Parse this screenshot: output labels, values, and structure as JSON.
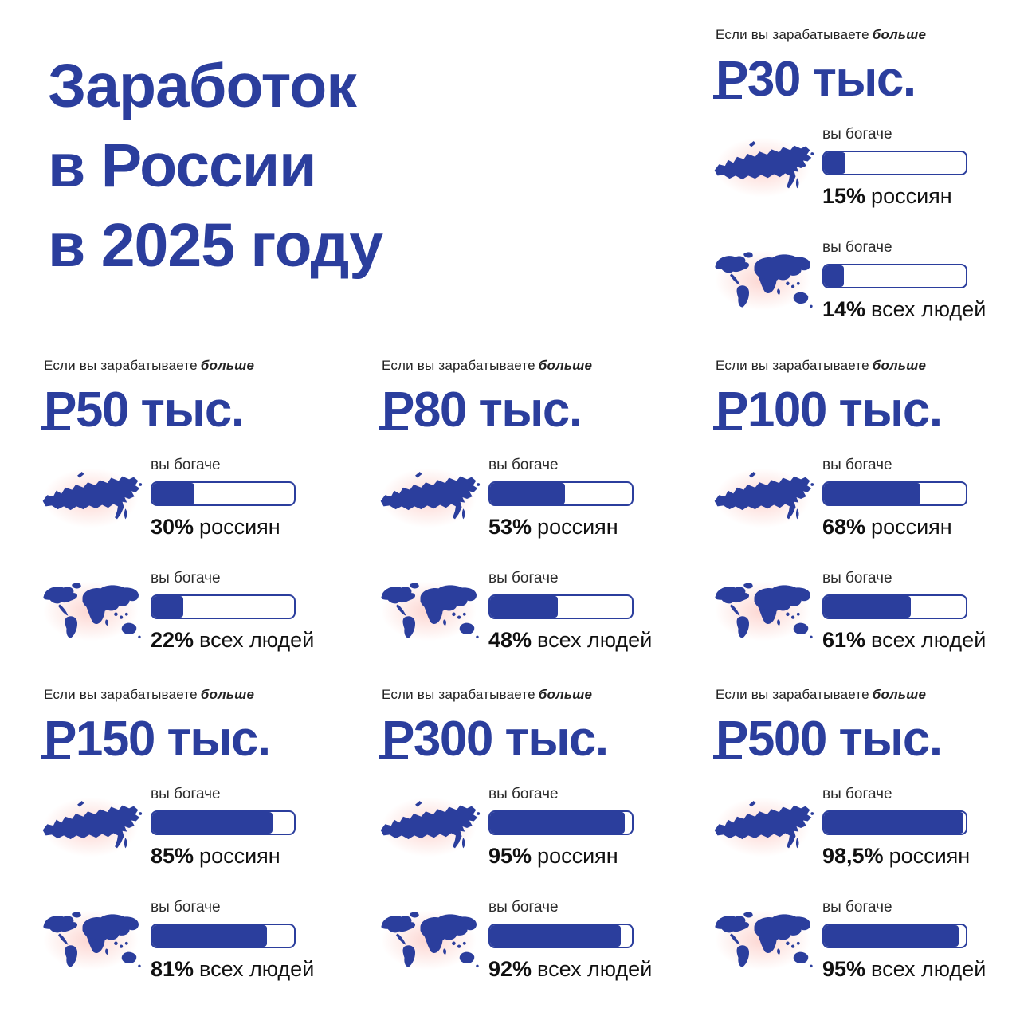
{
  "page": {
    "background": "#ffffff",
    "accent_blue": "#2b3e9d",
    "text_dark": "#1d1d1f",
    "map_glow_pink": "#faa89e"
  },
  "icons": {
    "ruble_base": "Р",
    "russia_map": "russia-map",
    "world_map": "world-map"
  },
  "main_title": {
    "lines": [
      "Заработок",
      "в России",
      "в 2025 году"
    ]
  },
  "labels": {
    "condition_prefix": "Если вы зарабатываете",
    "condition_bold": "больше",
    "richer": "вы богаче",
    "russians": "россиян",
    "world": "всех людей"
  },
  "panels": [
    {
      "threshold": "₽30 тыс.",
      "currency": "₽",
      "amount": "30 тыс.",
      "russia_pct": "15%",
      "russia_value": 15,
      "world_pct": "14%",
      "world_value": 14
    },
    {
      "threshold": "₽50 тыс.",
      "currency": "₽",
      "amount": "50 тыс.",
      "russia_pct": "30%",
      "russia_value": 30,
      "world_pct": "22%",
      "world_value": 22
    },
    {
      "threshold": "₽80 тыс.",
      "currency": "₽",
      "amount": "80 тыс.",
      "russia_pct": "53%",
      "russia_value": 53,
      "world_pct": "48%",
      "world_value": 48
    },
    {
      "threshold": "₽100 тыс.",
      "currency": "₽",
      "amount": "100 тыс.",
      "russia_pct": "68%",
      "russia_value": 68,
      "world_pct": "61%",
      "world_value": 61
    },
    {
      "threshold": "₽150 тыс.",
      "currency": "₽",
      "amount": "150 тыс.",
      "russia_pct": "85%",
      "russia_value": 85,
      "world_pct": "81%",
      "world_value": 81
    },
    {
      "threshold": "₽300 тыс.",
      "currency": "₽",
      "amount": "300 тыс.",
      "russia_pct": "95%",
      "russia_value": 95,
      "world_pct": "92%",
      "world_value": 92
    },
    {
      "threshold": "₽500 тыс.",
      "currency": "₽",
      "amount": "500 тыс.",
      "russia_pct": "98,5%",
      "russia_value": 98.5,
      "world_pct": "95%",
      "world_value": 95
    }
  ],
  "chart_data": {
    "type": "bar",
    "title": "Заработок в России в 2025 году",
    "subtitle_template": "Если вы зарабатываете больше {threshold} — вы богаче",
    "categories": [
      "₽30 тыс.",
      "₽50 тыс.",
      "₽80 тыс.",
      "₽100 тыс.",
      "₽150 тыс.",
      "₽300 тыс.",
      "₽500 тыс."
    ],
    "series": [
      {
        "name": "вы богаче, % россиян",
        "values": [
          15,
          30,
          53,
          68,
          85,
          95,
          98.5
        ]
      },
      {
        "name": "вы богаче, % всех людей",
        "values": [
          14,
          22,
          48,
          61,
          81,
          92,
          95
        ]
      }
    ],
    "unit": "%",
    "ylim": [
      0,
      100
    ],
    "legend_position": "inline-icons (russia-map / world-map)",
    "grid": false
  }
}
